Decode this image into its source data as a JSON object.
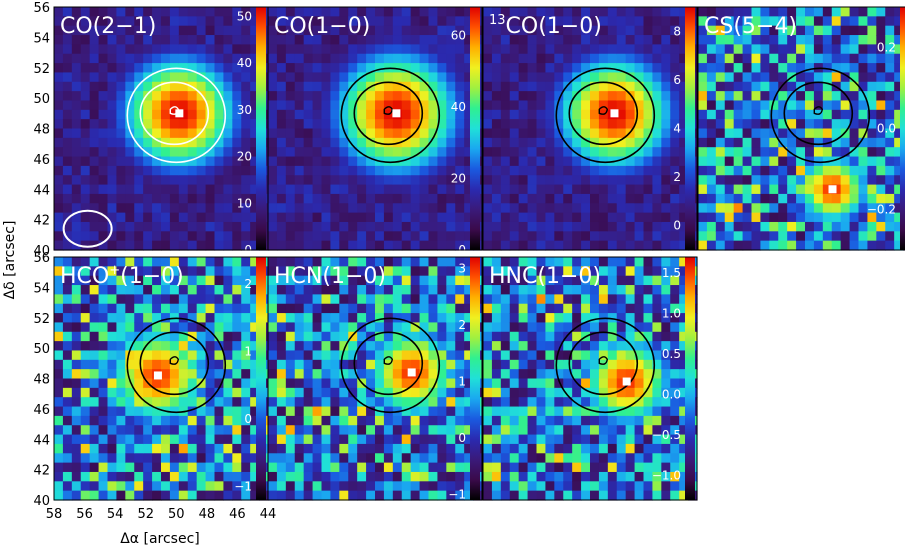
{
  "chart_data": {
    "type": "heatmap",
    "xlabel": "Δα [arcsec]",
    "ylabel": "Δδ [arcsec]",
    "xlim": [
      58,
      44
    ],
    "ylim": [
      40,
      56
    ],
    "x_ticks": [
      "58",
      "56",
      "54",
      "52",
      "50",
      "48",
      "46",
      "44"
    ],
    "y_ticks": [
      "40",
      "42",
      "44",
      "46",
      "48",
      "50",
      "52",
      "54",
      "56"
    ],
    "colormap": [
      "#000000",
      "#3a0a4a",
      "#3a1a7a",
      "#2a2ab0",
      "#1a5ae0",
      "#1aa8f0",
      "#20e0d8",
      "#30f090",
      "#a0f040",
      "#f0f020",
      "#ffb000",
      "#ff5000",
      "#e00000"
    ],
    "contour_color_panel1": "#ffffff",
    "contour_color": "#000000",
    "panels": [
      {
        "title": "CO(2−1)",
        "colorbar_ticks": [
          "50",
          "40",
          "30",
          "20",
          "10",
          "0"
        ],
        "range": [
          0,
          52
        ],
        "peak": [
          49.8,
          49.0
        ],
        "peak_value": 52,
        "width": 2.6
      },
      {
        "title": "CO(1−0)",
        "colorbar_ticks": [
          "60",
          "40",
          "20",
          "0"
        ],
        "range": [
          0,
          68
        ],
        "peak": [
          49.6,
          49.0
        ],
        "peak_value": 68,
        "width": 2.8
      },
      {
        "title_sup": "13",
        "title": "CO(1−0)",
        "colorbar_ticks": [
          "8",
          "6",
          "4",
          "2",
          "0"
        ],
        "range": [
          -1,
          9
        ],
        "peak": [
          49.4,
          49.0
        ],
        "peak_value": 9,
        "width": 2.6
      },
      {
        "title": "CS(5−4)",
        "colorbar_ticks": [
          "0.2",
          "0.0",
          "−0.2"
        ],
        "range": [
          -0.3,
          0.3
        ],
        "peak": [
          49.2,
          44.0
        ],
        "peak_value": 0.3,
        "width": 1.6
      },
      {
        "title": "HCO",
        "title_sup": "+",
        "title_rest": "(1−0)",
        "colorbar_ticks": [
          "2",
          "1",
          "0",
          "−1"
        ],
        "range": [
          -1.2,
          2.4
        ],
        "peak": [
          51.2,
          48.2
        ],
        "peak_value": 2.4,
        "width": 2.2
      },
      {
        "title": "HCN(1−0)",
        "colorbar_ticks": [
          "3",
          "2",
          "1",
          "0",
          "−1"
        ],
        "range": [
          -1.1,
          3.2
        ],
        "peak": [
          48.6,
          48.4
        ],
        "peak_value": 3.2,
        "width": 2.0
      },
      {
        "title": "HNC(1−0)",
        "colorbar_ticks": [
          "1.5",
          "1.0",
          "0.5",
          "0.0",
          "−0.5",
          "−1.0"
        ],
        "range": [
          -1.3,
          1.7
        ],
        "peak": [
          48.6,
          47.8
        ],
        "peak_value": 1.7,
        "width": 2.0
      }
    ]
  }
}
